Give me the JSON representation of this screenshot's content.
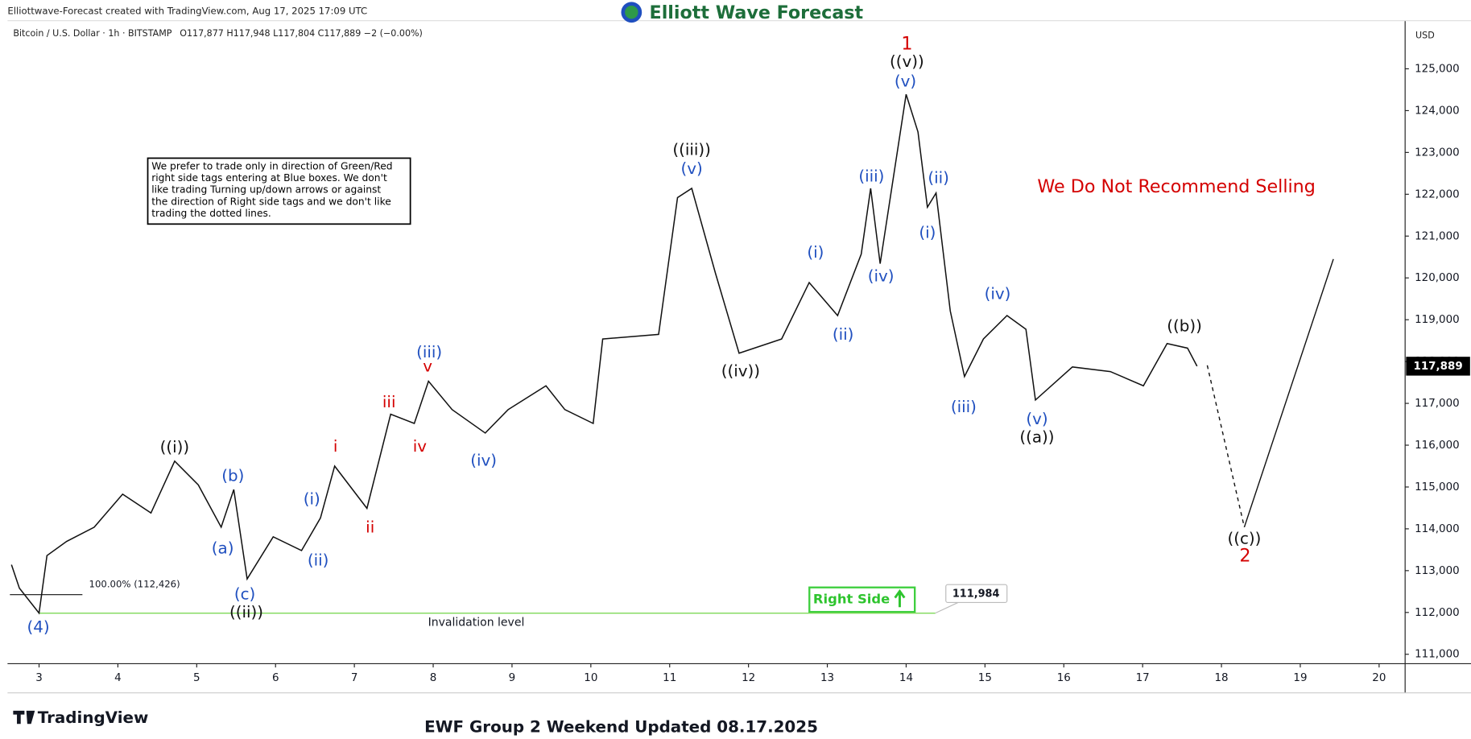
{
  "header": {
    "credit": "Elliottwave-Forecast created with TradingView.com, Aug 17, 2025 17:09 UTC",
    "brand": "Elliott Wave Forecast",
    "symbol": "Bitcoin / U.S. Dollar · 1h · BITSTAMP",
    "ohlc": "O117,877 H117,948 L117,804 C117,889 −2 (−0.00%)",
    "currency": "USD"
  },
  "chart_data": {
    "type": "line",
    "color": "#111111",
    "x": [
      2.65,
      2.75,
      3.0,
      3.1,
      3.35,
      3.7,
      4.06,
      4.42,
      4.72,
      5.02,
      5.31,
      5.47,
      5.64,
      5.97,
      6.33,
      6.57,
      6.75,
      7.16,
      7.46,
      7.76,
      7.94,
      8.24,
      8.66,
      8.95,
      9.43,
      9.67,
      10.03,
      10.15,
      10.86,
      11.1,
      11.28,
      11.58,
      11.88,
      12.42,
      12.77,
      13.13,
      13.43,
      13.55,
      13.67,
      14.0,
      14.15,
      14.27,
      14.38,
      14.56,
      14.74,
      14.98,
      15.28,
      15.52,
      15.64,
      16.11,
      16.59,
      17.01,
      17.31,
      17.57,
      17.69
    ],
    "values": [
      113140,
      112580,
      111984,
      113360,
      113700,
      114040,
      114830,
      114380,
      115620,
      115050,
      114040,
      114940,
      112800,
      113810,
      113480,
      114260,
      115500,
      114490,
      116740,
      116520,
      117530,
      116850,
      116290,
      116850,
      117420,
      116850,
      116520,
      118540,
      118650,
      121920,
      122140,
      120120,
      118200,
      118540,
      119890,
      119100,
      120570,
      122140,
      120340,
      124390,
      123490,
      121690,
      122030,
      119210,
      117640,
      118540,
      119100,
      118770,
      117080,
      117870,
      117760,
      117420,
      118430,
      118320,
      117889
    ],
    "projection": {
      "x": [
        17.82,
        18.29,
        19.42
      ],
      "values": [
        117910,
        114040,
        120450
      ]
    },
    "xlim": [
      2.6,
      20.33
    ],
    "ylim": [
      110775,
      126150
    ],
    "xticks": [
      3,
      4,
      5,
      6,
      7,
      8,
      9,
      10,
      11,
      12,
      13,
      14,
      15,
      16,
      17,
      18,
      19,
      20
    ],
    "yticks": [
      {
        "value": 111000,
        "label": "111,000"
      },
      {
        "value": 112000,
        "label": "112,000"
      },
      {
        "value": 113000,
        "label": "113,000"
      },
      {
        "value": 114000,
        "label": "114,000"
      },
      {
        "value": 115000,
        "label": "115,000"
      },
      {
        "value": 116000,
        "label": "116,000"
      },
      {
        "value": 117000,
        "label": "117,000"
      },
      {
        "value": 118000,
        "label": "118,000"
      },
      {
        "value": 119000,
        "label": "119,000"
      },
      {
        "value": 120000,
        "label": "120,000"
      },
      {
        "value": 121000,
        "label": "121,000"
      },
      {
        "value": 122000,
        "label": "122,000"
      },
      {
        "value": 123000,
        "label": "123,000"
      },
      {
        "value": 124000,
        "label": "124,000"
      },
      {
        "value": 125000,
        "label": "125,000"
      }
    ],
    "last_price": {
      "value": 117889,
      "label": "117,889"
    },
    "invalidation": {
      "value": 111984,
      "label": "111,984",
      "from": 3.0,
      "to": 14.37,
      "text": "Invalidation level"
    },
    "fib": {
      "value": 112426,
      "label": "100.00% (112,426)",
      "from": 2.63,
      "to": 3.55
    },
    "annotations": [
      {
        "text": "1",
        "color": "#d40000",
        "x": 14.01,
        "y": 125585
      },
      {
        "text": "((v))",
        "color": "#111111",
        "x": 14.01,
        "y": 125158
      },
      {
        "text": "(v)",
        "color": "#1f4fbf",
        "x": 13.99,
        "y": 124685
      },
      {
        "text": "((iii))",
        "color": "#111111",
        "x": 11.28,
        "y": 123042
      },
      {
        "text": "(v)",
        "color": "#1f4fbf",
        "x": 11.28,
        "y": 122592
      },
      {
        "text": "((i))",
        "color": "#111111",
        "x": 4.72,
        "y": 115930
      },
      {
        "text": "(b)",
        "color": "#1f4fbf",
        "x": 5.46,
        "y": 115254
      },
      {
        "text": "(a)",
        "color": "#1f4fbf",
        "x": 5.33,
        "y": 113521
      },
      {
        "text": "(c)",
        "color": "#1f4fbf",
        "x": 5.61,
        "y": 112419
      },
      {
        "text": "((ii))",
        "color": "#111111",
        "x": 5.63,
        "y": 111991
      },
      {
        "text": "(4)",
        "color": "#1f4fbf",
        "x": 2.99,
        "y": 111631
      },
      {
        "text": "(i)",
        "color": "#1f4fbf",
        "x": 6.46,
        "y": 114692
      },
      {
        "text": "(ii)",
        "color": "#1f4fbf",
        "x": 6.54,
        "y": 113229
      },
      {
        "text": "i",
        "color": "#d40000",
        "x": 6.76,
        "y": 115952
      },
      {
        "text": "ii",
        "color": "#d40000",
        "x": 7.2,
        "y": 114017
      },
      {
        "text": "iii",
        "color": "#d40000",
        "x": 7.44,
        "y": 117010
      },
      {
        "text": "iv",
        "color": "#d40000",
        "x": 7.83,
        "y": 115952
      },
      {
        "text": "v",
        "color": "#d40000",
        "x": 7.93,
        "y": 117865
      },
      {
        "text": "(iii)",
        "color": "#1f4fbf",
        "x": 7.95,
        "y": 118203
      },
      {
        "text": "(iv)",
        "color": "#1f4fbf",
        "x": 8.64,
        "y": 115615
      },
      {
        "text": "((iv))",
        "color": "#111111",
        "x": 11.9,
        "y": 117753
      },
      {
        "text": "(i)",
        "color": "#1f4fbf",
        "x": 12.85,
        "y": 120589
      },
      {
        "text": "(ii)",
        "color": "#1f4fbf",
        "x": 13.2,
        "y": 118630
      },
      {
        "text": "(iii)",
        "color": "#1f4fbf",
        "x": 13.56,
        "y": 122412
      },
      {
        "text": "(iv)",
        "color": "#1f4fbf",
        "x": 13.68,
        "y": 120026
      },
      {
        "text": "(ii)",
        "color": "#1f4fbf",
        "x": 14.41,
        "y": 122367
      },
      {
        "text": "(i)",
        "color": "#1f4fbf",
        "x": 14.27,
        "y": 121061
      },
      {
        "text": "(iii)",
        "color": "#1f4fbf",
        "x": 14.73,
        "y": 116897
      },
      {
        "text": "(iv)",
        "color": "#1f4fbf",
        "x": 15.16,
        "y": 119598
      },
      {
        "text": "(v)",
        "color": "#1f4fbf",
        "x": 15.66,
        "y": 116605
      },
      {
        "text": "((a))",
        "color": "#111111",
        "x": 15.66,
        "y": 116177
      },
      {
        "text": "((b))",
        "color": "#111111",
        "x": 17.53,
        "y": 118833
      },
      {
        "text": "((c))",
        "color": "#111111",
        "x": 18.29,
        "y": 113746
      },
      {
        "text": "2",
        "color": "#d40000",
        "x": 18.3,
        "y": 113341
      }
    ]
  },
  "note": [
    "We prefer to trade only in direction of Green/Red",
    "right side tags entering at Blue boxes. We don't",
    "like trading Turning up/down arrows or against",
    "the direction of Right side tags and we don't like",
    "trading the dotted lines."
  ],
  "warning": "We Do Not Recommend Selling",
  "right_side": "Right Side",
  "footer": {
    "logo": "TradingView",
    "caption": "EWF Group 2 Weekend Updated 08.17.2025"
  }
}
